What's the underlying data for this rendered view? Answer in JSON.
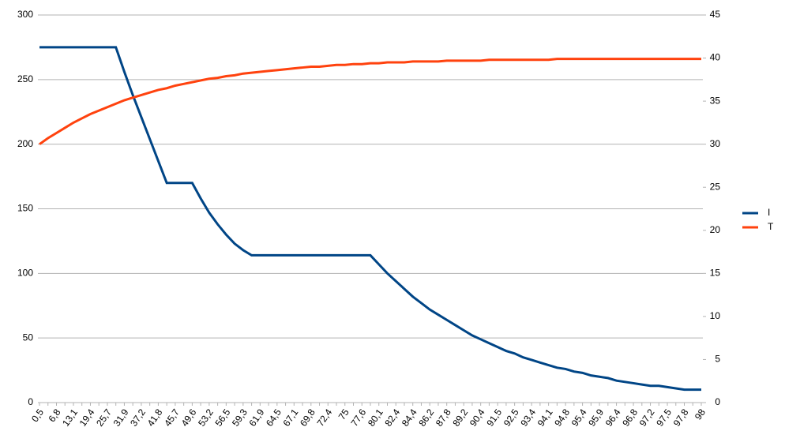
{
  "chart_data": {
    "type": "line",
    "categories": [
      "0,5",
      null,
      "6,8",
      null,
      "13,1",
      null,
      "19,4",
      null,
      "25,7",
      null,
      "31,9",
      null,
      "37,2",
      null,
      "41,8",
      null,
      "45,7",
      null,
      "49,6",
      null,
      "53,2",
      null,
      "56,5",
      null,
      "59,3",
      null,
      "61,9",
      null,
      "64,5",
      null,
      "67,1",
      null,
      "69,8",
      null,
      "72,4",
      null,
      "75",
      null,
      "77,6",
      null,
      "80,1",
      null,
      "82,4",
      null,
      "84,4",
      null,
      "86,2",
      null,
      "87,8",
      null,
      "89,2",
      null,
      "90,4",
      null,
      "91,5",
      null,
      "92,5",
      null,
      "93,4",
      null,
      "94,1",
      null,
      "94,8",
      null,
      "95,4",
      null,
      "95,9",
      null,
      "96,4",
      null,
      "96,8",
      null,
      "97,2",
      null,
      "97,5",
      null,
      "97,8",
      null,
      "98"
    ],
    "series": [
      {
        "name": "I",
        "color": "#004586",
        "axis": "y",
        "values": [
          275,
          275,
          275,
          275,
          275,
          275,
          275,
          275,
          275,
          275,
          256,
          238,
          221,
          204,
          187,
          170,
          170,
          170,
          170,
          158,
          147,
          138,
          130,
          123,
          118,
          114,
          114,
          114,
          114,
          114,
          114,
          114,
          114,
          114,
          114,
          114,
          114,
          114,
          114,
          114,
          107,
          100,
          94,
          88,
          82,
          77,
          72,
          68,
          64,
          60,
          56,
          52,
          49,
          46,
          43,
          40,
          38,
          35,
          33,
          31,
          29,
          27,
          26,
          24,
          23,
          21,
          20,
          19,
          17,
          16,
          15,
          14,
          13,
          13,
          12,
          11,
          10,
          10,
          10
        ]
      },
      {
        "name": "T",
        "color": "#ff420e",
        "axis": "y2",
        "values": [
          30.0,
          30.7,
          31.3,
          31.9,
          32.5,
          33.0,
          33.5,
          33.9,
          34.3,
          34.7,
          35.1,
          35.4,
          35.7,
          36.0,
          36.3,
          36.5,
          36.8,
          37.0,
          37.2,
          37.4,
          37.6,
          37.7,
          37.9,
          38.0,
          38.2,
          38.3,
          38.4,
          38.5,
          38.6,
          38.7,
          38.8,
          38.9,
          39.0,
          39.0,
          39.1,
          39.2,
          39.2,
          39.3,
          39.3,
          39.4,
          39.4,
          39.5,
          39.5,
          39.5,
          39.6,
          39.6,
          39.6,
          39.6,
          39.7,
          39.7,
          39.7,
          39.7,
          39.7,
          39.8,
          39.8,
          39.8,
          39.8,
          39.8,
          39.8,
          39.8,
          39.8,
          39.9,
          39.9,
          39.9,
          39.9,
          39.9,
          39.9,
          39.9,
          39.9,
          39.9,
          39.9,
          39.9,
          39.9,
          39.9,
          39.9,
          39.9,
          39.9,
          39.9,
          39.9
        ]
      }
    ],
    "ylim": [
      0,
      300
    ],
    "yticks": [
      0,
      50,
      100,
      150,
      200,
      250,
      300
    ],
    "y2lim": [
      0,
      45
    ],
    "y2ticks": [
      0,
      5,
      10,
      15,
      20,
      25,
      30,
      35,
      40,
      45
    ],
    "grid": true,
    "legend": "right"
  }
}
